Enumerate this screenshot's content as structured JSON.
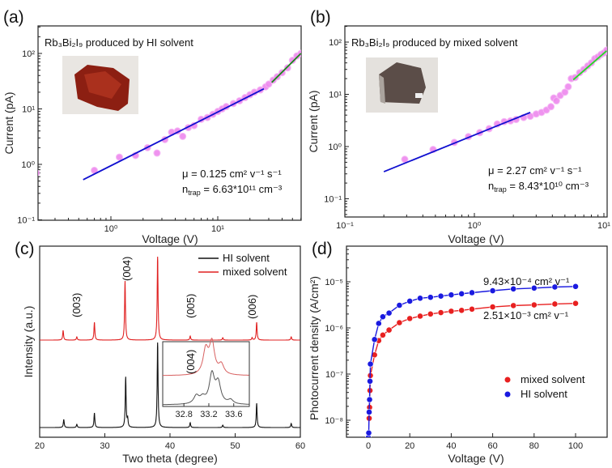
{
  "chart_data": [
    {
      "panel": "(a)",
      "type": "scatter",
      "title": "Rb₃Bi₂I₉ produced by HI solvent",
      "xlabel": "Voltage (V)",
      "ylabel": "Current (pA)",
      "xscale": "log",
      "yscale": "log",
      "xlim": [
        0.21,
        60
      ],
      "ylim": [
        0.1,
        300
      ],
      "xticks": [
        "10⁰",
        "10¹"
      ],
      "xtick_values": [
        1,
        10
      ],
      "yticks": [
        "10⁻¹",
        "10⁰",
        "10¹",
        "10²"
      ],
      "ytick_values": [
        0.1,
        1,
        10,
        100
      ],
      "points": [
        [
          0.2,
          0.7
        ],
        [
          0.7,
          0.78
        ],
        [
          1.2,
          1.35
        ],
        [
          1.7,
          1.45
        ],
        [
          2.2,
          2.0
        ],
        [
          2.7,
          1.6
        ],
        [
          3.2,
          2.8
        ],
        [
          3.7,
          3.8
        ],
        [
          4.2,
          4.0
        ],
        [
          4.7,
          3.2
        ],
        [
          5.3,
          4.6
        ],
        [
          6,
          5
        ],
        [
          7,
          6.5
        ],
        [
          8,
          7
        ],
        [
          9,
          8
        ],
        [
          10,
          9
        ],
        [
          11,
          10
        ],
        [
          12,
          11
        ],
        [
          14,
          12.5
        ],
        [
          16,
          14
        ],
        [
          18,
          16
        ],
        [
          20,
          18
        ],
        [
          22,
          20
        ],
        [
          25,
          22
        ],
        [
          28,
          25
        ],
        [
          30,
          28
        ],
        [
          33,
          33
        ],
        [
          36,
          38
        ],
        [
          40,
          45
        ],
        [
          45,
          55
        ],
        [
          50,
          75
        ],
        [
          55,
          90
        ],
        [
          60,
          100
        ]
      ],
      "fits": [
        {
          "color": "#1010d0",
          "from": [
            0.55,
            0.53
          ],
          "to": [
            27,
            23
          ]
        },
        {
          "color": "#1a8a1a",
          "from": [
            32,
            30
          ],
          "to": [
            60,
            100
          ]
        }
      ],
      "annotations": {
        "mu": "μ = 0.125 cm² v⁻¹ s⁻¹",
        "n_main": "n",
        "n_sub": "trap",
        "n_rest": " = 6.63*10¹¹ cm⁻³"
      },
      "marker_color": "#ee88ee"
    },
    {
      "panel": "(b)",
      "type": "scatter",
      "title": "Rb₃Bi₂I₉ produced by mixed solvent",
      "xlabel": "Voltage (V)",
      "ylabel": "Current (pA)",
      "xscale": "log",
      "yscale": "log",
      "xlim": [
        0.1,
        10.5
      ],
      "ylim": [
        0.044,
        200
      ],
      "xticks": [
        "10⁻¹",
        "10⁰",
        "10¹"
      ],
      "xtick_values": [
        0.1,
        1,
        10
      ],
      "yticks": [
        "10⁻¹",
        "10⁰",
        "10¹",
        "10²"
      ],
      "ytick_values": [
        0.1,
        1,
        10,
        100
      ],
      "points": [
        [
          0.29,
          0.57
        ],
        [
          0.48,
          0.88
        ],
        [
          0.7,
          1.2
        ],
        [
          0.9,
          1.55
        ],
        [
          1.1,
          1.85
        ],
        [
          1.3,
          2.2
        ],
        [
          1.5,
          2.7
        ],
        [
          1.7,
          3.0
        ],
        [
          1.9,
          3.1
        ],
        [
          2.1,
          3.3
        ],
        [
          2.4,
          3.6
        ],
        [
          2.7,
          3.8
        ],
        [
          3,
          4.2
        ],
        [
          3.3,
          4.5
        ],
        [
          3.6,
          5
        ],
        [
          3.9,
          5.8
        ],
        [
          4.1,
          8.5
        ],
        [
          4.3,
          7.5
        ],
        [
          4.6,
          9.5
        ],
        [
          5,
          11
        ],
        [
          5.3,
          14
        ],
        [
          5.6,
          20
        ],
        [
          6,
          21
        ],
        [
          6.5,
          26
        ],
        [
          7,
          30
        ],
        [
          7.5,
          35
        ],
        [
          8,
          40
        ],
        [
          8.5,
          48
        ],
        [
          9,
          52
        ],
        [
          9.5,
          58
        ],
        [
          10,
          62
        ],
        [
          10.5,
          70
        ]
      ],
      "fits": [
        {
          "color": "#1010d0",
          "from": [
            0.2,
            0.33
          ],
          "to": [
            2.7,
            4.5
          ]
        },
        {
          "color": "#22dd22",
          "from": [
            5.8,
            19
          ],
          "to": [
            10.5,
            68
          ]
        }
      ],
      "annotations": {
        "mu": "μ = 2.27 cm² v⁻¹ s⁻¹",
        "n_main": "n",
        "n_sub": "trap",
        "n_rest": " = 8.43*10¹⁰ cm⁻³"
      },
      "marker_color": "#ee88ee"
    },
    {
      "panel": "(c)",
      "type": "line",
      "xlabel": "Two theta (degree)",
      "ylabel": "Intensity (a.u.)",
      "xlim": [
        20,
        60
      ],
      "ylim": [
        0,
        236
      ],
      "xticks": [
        "20",
        "30",
        "40",
        "50",
        "60"
      ],
      "xtick_values": [
        20,
        30,
        40,
        50,
        60
      ],
      "series": [
        {
          "name": "HI solvent",
          "color": "#111111",
          "baseline": 12,
          "peaks": [
            [
              23.7,
              10
            ],
            [
              25.7,
              4
            ],
            [
              28.4,
              18
            ],
            [
              33.2,
              62
            ],
            [
              33.5,
              10
            ],
            [
              38.1,
              105
            ],
            [
              43.1,
              6
            ],
            [
              48.1,
              3
            ],
            [
              53.3,
              30
            ],
            [
              58.6,
              5
            ]
          ]
        },
        {
          "name": "mixed solvent",
          "color": "#e02020",
          "baseline": 120,
          "peaks": [
            [
              23.6,
              12
            ],
            [
              25.7,
              4
            ],
            [
              28.4,
              22
            ],
            [
              33.1,
              73
            ],
            [
              38.1,
              103
            ],
            [
              43.1,
              5
            ],
            [
              48.1,
              3
            ],
            [
              52.6,
              3
            ],
            [
              53.3,
              22
            ],
            [
              58.6,
              4
            ]
          ]
        }
      ],
      "peak_labels": [
        "(003)",
        "(004)",
        "(005)",
        "(006)"
      ],
      "inset": {
        "label": "(004)",
        "xlim": [
          32.46,
          33.85
        ],
        "xticks": [
          "32.8",
          "33.2",
          "33.6"
        ],
        "xtick_values": [
          32.8,
          33.2,
          33.6
        ],
        "series": [
          {
            "name": "mixed solvent",
            "color": "#d86060",
            "baseline": 0,
            "peaks": [
              [
                33.15,
                30
              ],
              [
                33.25,
                39
              ],
              [
                33.4,
                12
              ]
            ]
          },
          {
            "name": "HI solvent",
            "color": "#555555",
            "baseline": 0,
            "peaks": [
              [
                33.0,
                10
              ],
              [
                33.1,
                7
              ],
              [
                33.25,
                36
              ],
              [
                33.35,
                25
              ],
              [
                33.55,
                5
              ]
            ]
          }
        ]
      }
    },
    {
      "panel": "(d)",
      "type": "scatter",
      "xlabel": "Voltage (V)",
      "ylabel": "Photocurrent density (A/cm²)",
      "xlim": [
        -10,
        115
      ],
      "yscale": "log",
      "ylim": [
        4e-09,
        6e-05
      ],
      "xticks": [
        "0",
        "20",
        "40",
        "60",
        "80",
        "100"
      ],
      "xtick_values": [
        0,
        20,
        40,
        60,
        80,
        100
      ],
      "yticks": [
        "10⁻⁸",
        "10⁻⁷",
        "10⁻⁶",
        "10⁻⁵"
      ],
      "ytick_values": [
        1e-08,
        1e-07,
        1e-06,
        1e-05
      ],
      "series": [
        {
          "name": "mixed solvent",
          "color": "#e82020",
          "x": [
            0.4,
            0.6,
            0.8,
            1,
            3,
            5,
            7,
            10,
            15,
            20,
            25,
            30,
            35,
            40,
            45,
            50,
            60,
            70,
            80,
            90,
            100
          ],
          "y": [
            1.1e-08,
            1.9e-08,
            4.4e-08,
            9.3e-08,
            2.6e-07,
            5.3e-07,
            7e-07,
            9e-07,
            1.3e-06,
            1.6e-06,
            1.8e-06,
            2e-06,
            2.15e-06,
            2.3e-06,
            2.4e-06,
            2.55e-06,
            2.85e-06,
            3.05e-06,
            3.15e-06,
            3.3e-06,
            3.4e-06
          ]
        },
        {
          "name": "HI solvent",
          "color": "#1a1ae0",
          "x": [
            0,
            0.2,
            0.4,
            0.6,
            0.8,
            1,
            3,
            5,
            7,
            10,
            15,
            20,
            25,
            30,
            35,
            40,
            45,
            50,
            60,
            70,
            80,
            90,
            100
          ],
          "y": [
            4.2e-09,
            5.3e-09,
            1.5e-08,
            2.8e-08,
            7e-08,
            1.65e-07,
            5.6e-07,
            1.25e-06,
            1.75e-06,
            2.1e-06,
            3.1e-06,
            3.8e-06,
            4.4e-06,
            4.6e-06,
            4.9e-06,
            5.2e-06,
            5.5e-06,
            5.8e-06,
            6.4e-06,
            7e-06,
            7.3e-06,
            7.7e-06,
            7.9e-06
          ]
        }
      ],
      "annotations": [
        "9.43×10⁻⁴ cm² v⁻¹",
        "2.51×10⁻³ cm² v⁻¹"
      ]
    }
  ]
}
